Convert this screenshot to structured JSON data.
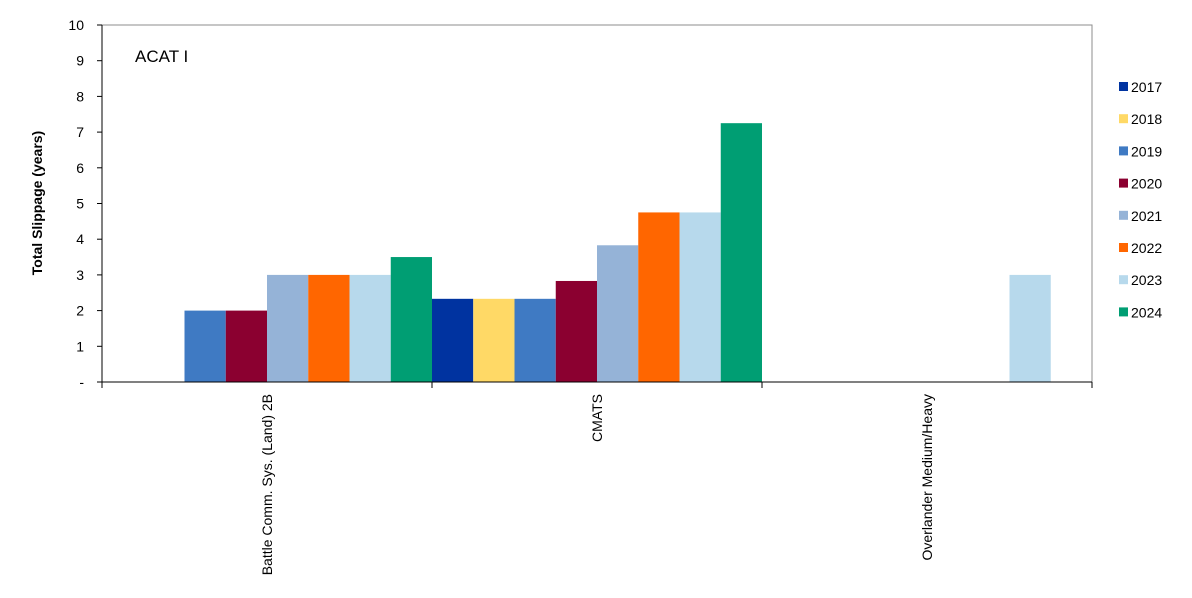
{
  "chart_data": {
    "type": "bar",
    "title": "ACAT I",
    "ylabel": "Total Slippage (years)",
    "xlabel": "",
    "ylim": [
      0,
      10
    ],
    "yticks": [
      "-",
      "1",
      "2",
      "3",
      "4",
      "5",
      "6",
      "7",
      "8",
      "9",
      "10"
    ],
    "grid": false,
    "legend_position": "right",
    "categories": [
      "Battle Comm. Sys. (Land) 2B",
      "CMATS",
      "Overlander Medium/Heavy"
    ],
    "series": [
      {
        "name": "2017",
        "color": "#0033a0",
        "values": [
          0,
          2.33,
          0
        ]
      },
      {
        "name": "2018",
        "color": "#ffd966",
        "values": [
          0,
          2.33,
          0
        ]
      },
      {
        "name": "2019",
        "color": "#3f7ac3",
        "values": [
          2,
          2.33,
          0
        ]
      },
      {
        "name": "2020",
        "color": "#8b0030",
        "values": [
          2,
          2.83,
          0
        ]
      },
      {
        "name": "2021",
        "color": "#95b3d7",
        "values": [
          3,
          3.83,
          0
        ]
      },
      {
        "name": "2022",
        "color": "#ff6600",
        "values": [
          3,
          4.75,
          0
        ]
      },
      {
        "name": "2023",
        "color": "#b7d9ec",
        "values": [
          3,
          4.75,
          3
        ]
      },
      {
        "name": "2024",
        "color": "#009e73",
        "values": [
          3.5,
          7.25,
          0
        ]
      }
    ]
  }
}
